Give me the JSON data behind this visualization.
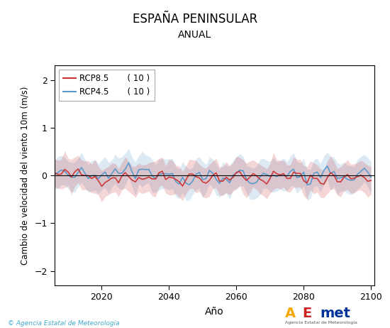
{
  "title": "ESPAÑA PENINSULAR",
  "subtitle": "ANUAL",
  "xlabel": "Año",
  "ylabel": "Cambio de velocidad del viento 10m (m/s)",
  "ylim": [
    -2.3,
    2.3
  ],
  "xlim": [
    2006,
    2101
  ],
  "yticks": [
    -2,
    -1,
    0,
    1,
    2
  ],
  "xticks": [
    2020,
    2040,
    2060,
    2080,
    2100
  ],
  "rcp85_color": "#cc3333",
  "rcp45_color": "#5599cc",
  "rcp85_label": "RCP8.5",
  "rcp45_label": "RCP4.5",
  "rcp85_count": "( 10 )",
  "rcp45_count": "( 10 )",
  "bg_color": "#ffffff",
  "plot_bg_color": "#ffffff",
  "copyright_text": "© Agencia Estatal de Meteorología",
  "year_start": 2006,
  "year_end": 2100,
  "seed": 42,
  "band_amplitude": 0.28,
  "line_amplitude": 0.12
}
